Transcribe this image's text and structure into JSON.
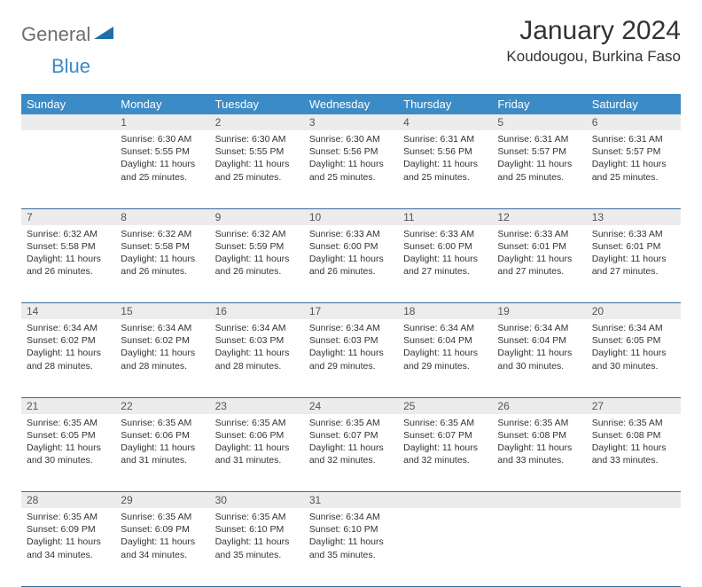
{
  "logo": {
    "general": "General",
    "blue": "Blue"
  },
  "title": "January 2024",
  "location": "Koudougou, Burkina Faso",
  "colors": {
    "header_bg": "#3b8bc6",
    "header_text": "#ffffff",
    "daynum_bg": "#ececec",
    "rule": "#3b6a9a",
    "body_text": "#333333",
    "logo_gray": "#6d6e71",
    "logo_blue": "#3b8bc6"
  },
  "weekdays": [
    "Sunday",
    "Monday",
    "Tuesday",
    "Wednesday",
    "Thursday",
    "Friday",
    "Saturday"
  ],
  "weeks": [
    {
      "nums": [
        "",
        "1",
        "2",
        "3",
        "4",
        "5",
        "6"
      ],
      "cells": [
        null,
        {
          "sunrise": "Sunrise: 6:30 AM",
          "sunset": "Sunset: 5:55 PM",
          "d1": "Daylight: 11 hours",
          "d2": "and 25 minutes."
        },
        {
          "sunrise": "Sunrise: 6:30 AM",
          "sunset": "Sunset: 5:55 PM",
          "d1": "Daylight: 11 hours",
          "d2": "and 25 minutes."
        },
        {
          "sunrise": "Sunrise: 6:30 AM",
          "sunset": "Sunset: 5:56 PM",
          "d1": "Daylight: 11 hours",
          "d2": "and 25 minutes."
        },
        {
          "sunrise": "Sunrise: 6:31 AM",
          "sunset": "Sunset: 5:56 PM",
          "d1": "Daylight: 11 hours",
          "d2": "and 25 minutes."
        },
        {
          "sunrise": "Sunrise: 6:31 AM",
          "sunset": "Sunset: 5:57 PM",
          "d1": "Daylight: 11 hours",
          "d2": "and 25 minutes."
        },
        {
          "sunrise": "Sunrise: 6:31 AM",
          "sunset": "Sunset: 5:57 PM",
          "d1": "Daylight: 11 hours",
          "d2": "and 25 minutes."
        }
      ]
    },
    {
      "nums": [
        "7",
        "8",
        "9",
        "10",
        "11",
        "12",
        "13"
      ],
      "cells": [
        {
          "sunrise": "Sunrise: 6:32 AM",
          "sunset": "Sunset: 5:58 PM",
          "d1": "Daylight: 11 hours",
          "d2": "and 26 minutes."
        },
        {
          "sunrise": "Sunrise: 6:32 AM",
          "sunset": "Sunset: 5:58 PM",
          "d1": "Daylight: 11 hours",
          "d2": "and 26 minutes."
        },
        {
          "sunrise": "Sunrise: 6:32 AM",
          "sunset": "Sunset: 5:59 PM",
          "d1": "Daylight: 11 hours",
          "d2": "and 26 minutes."
        },
        {
          "sunrise": "Sunrise: 6:33 AM",
          "sunset": "Sunset: 6:00 PM",
          "d1": "Daylight: 11 hours",
          "d2": "and 26 minutes."
        },
        {
          "sunrise": "Sunrise: 6:33 AM",
          "sunset": "Sunset: 6:00 PM",
          "d1": "Daylight: 11 hours",
          "d2": "and 27 minutes."
        },
        {
          "sunrise": "Sunrise: 6:33 AM",
          "sunset": "Sunset: 6:01 PM",
          "d1": "Daylight: 11 hours",
          "d2": "and 27 minutes."
        },
        {
          "sunrise": "Sunrise: 6:33 AM",
          "sunset": "Sunset: 6:01 PM",
          "d1": "Daylight: 11 hours",
          "d2": "and 27 minutes."
        }
      ]
    },
    {
      "nums": [
        "14",
        "15",
        "16",
        "17",
        "18",
        "19",
        "20"
      ],
      "cells": [
        {
          "sunrise": "Sunrise: 6:34 AM",
          "sunset": "Sunset: 6:02 PM",
          "d1": "Daylight: 11 hours",
          "d2": "and 28 minutes."
        },
        {
          "sunrise": "Sunrise: 6:34 AM",
          "sunset": "Sunset: 6:02 PM",
          "d1": "Daylight: 11 hours",
          "d2": "and 28 minutes."
        },
        {
          "sunrise": "Sunrise: 6:34 AM",
          "sunset": "Sunset: 6:03 PM",
          "d1": "Daylight: 11 hours",
          "d2": "and 28 minutes."
        },
        {
          "sunrise": "Sunrise: 6:34 AM",
          "sunset": "Sunset: 6:03 PM",
          "d1": "Daylight: 11 hours",
          "d2": "and 29 minutes."
        },
        {
          "sunrise": "Sunrise: 6:34 AM",
          "sunset": "Sunset: 6:04 PM",
          "d1": "Daylight: 11 hours",
          "d2": "and 29 minutes."
        },
        {
          "sunrise": "Sunrise: 6:34 AM",
          "sunset": "Sunset: 6:04 PM",
          "d1": "Daylight: 11 hours",
          "d2": "and 30 minutes."
        },
        {
          "sunrise": "Sunrise: 6:34 AM",
          "sunset": "Sunset: 6:05 PM",
          "d1": "Daylight: 11 hours",
          "d2": "and 30 minutes."
        }
      ]
    },
    {
      "nums": [
        "21",
        "22",
        "23",
        "24",
        "25",
        "26",
        "27"
      ],
      "cells": [
        {
          "sunrise": "Sunrise: 6:35 AM",
          "sunset": "Sunset: 6:05 PM",
          "d1": "Daylight: 11 hours",
          "d2": "and 30 minutes."
        },
        {
          "sunrise": "Sunrise: 6:35 AM",
          "sunset": "Sunset: 6:06 PM",
          "d1": "Daylight: 11 hours",
          "d2": "and 31 minutes."
        },
        {
          "sunrise": "Sunrise: 6:35 AM",
          "sunset": "Sunset: 6:06 PM",
          "d1": "Daylight: 11 hours",
          "d2": "and 31 minutes."
        },
        {
          "sunrise": "Sunrise: 6:35 AM",
          "sunset": "Sunset: 6:07 PM",
          "d1": "Daylight: 11 hours",
          "d2": "and 32 minutes."
        },
        {
          "sunrise": "Sunrise: 6:35 AM",
          "sunset": "Sunset: 6:07 PM",
          "d1": "Daylight: 11 hours",
          "d2": "and 32 minutes."
        },
        {
          "sunrise": "Sunrise: 6:35 AM",
          "sunset": "Sunset: 6:08 PM",
          "d1": "Daylight: 11 hours",
          "d2": "and 33 minutes."
        },
        {
          "sunrise": "Sunrise: 6:35 AM",
          "sunset": "Sunset: 6:08 PM",
          "d1": "Daylight: 11 hours",
          "d2": "and 33 minutes."
        }
      ]
    },
    {
      "nums": [
        "28",
        "29",
        "30",
        "31",
        "",
        "",
        ""
      ],
      "cells": [
        {
          "sunrise": "Sunrise: 6:35 AM",
          "sunset": "Sunset: 6:09 PM",
          "d1": "Daylight: 11 hours",
          "d2": "and 34 minutes."
        },
        {
          "sunrise": "Sunrise: 6:35 AM",
          "sunset": "Sunset: 6:09 PM",
          "d1": "Daylight: 11 hours",
          "d2": "and 34 minutes."
        },
        {
          "sunrise": "Sunrise: 6:35 AM",
          "sunset": "Sunset: 6:10 PM",
          "d1": "Daylight: 11 hours",
          "d2": "and 35 minutes."
        },
        {
          "sunrise": "Sunrise: 6:34 AM",
          "sunset": "Sunset: 6:10 PM",
          "d1": "Daylight: 11 hours",
          "d2": "and 35 minutes."
        },
        null,
        null,
        null
      ]
    }
  ]
}
